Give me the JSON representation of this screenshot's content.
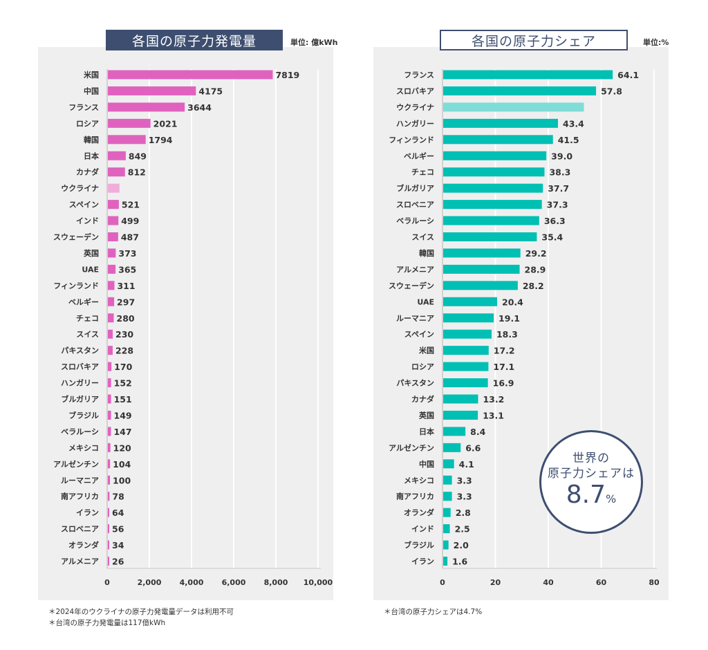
{
  "left": {
    "title": "各国の原子力発電量",
    "unit": "単位: 億kWh",
    "notes": [
      "＊2024年のウクライナの原子力発電量データは利用不可",
      "＊台湾の原子力発電量は117億kWh"
    ]
  },
  "right": {
    "title": "各国の原子力シェア",
    "unit": "単位:%",
    "notes": [
      "＊台湾の原子力シェアは4.7%"
    ],
    "badge": {
      "line1": "世界の",
      "line2": "原子力シェアは",
      "value": "8.7",
      "suffix": "%"
    }
  },
  "colors": {
    "pink": "#e062bf",
    "pink_light": "#f1acdc",
    "teal": "#00bfb3",
    "teal_light": "#7fdcd7",
    "navy": "#3d4e70",
    "panel": "#efefef"
  },
  "chart_data": [
    {
      "type": "bar",
      "orientation": "horizontal",
      "title": "各国の原子力発電量",
      "unit": "億kWh",
      "xlim": [
        0,
        10000
      ],
      "xticks": [
        0,
        2000,
        4000,
        6000,
        8000,
        10000
      ],
      "xtick_labels": [
        "0",
        "2,000",
        "4,000",
        "6,000",
        "8,000",
        "10,000"
      ],
      "grid": true,
      "categories": [
        "米国",
        "中国",
        "フランス",
        "ロシア",
        "韓国",
        "日本",
        "カナダ",
        "ウクライナ",
        "スペイン",
        "インド",
        "スウェーデン",
        "英国",
        "UAE",
        "フィンランド",
        "ベルギー",
        "チェコ",
        "スイス",
        "パキスタン",
        "スロバキア",
        "ハンガリー",
        "ブルガリア",
        "ブラジル",
        "ベラルーシ",
        "メキシコ",
        "アルゼンチン",
        "ルーマニア",
        "南アフリカ",
        "イラン",
        "スロベニア",
        "オランダ",
        "アルメニア"
      ],
      "values": [
        7819,
        4175,
        3644,
        2021,
        1794,
        849,
        812,
        550,
        521,
        499,
        487,
        373,
        365,
        311,
        297,
        280,
        230,
        228,
        170,
        152,
        151,
        149,
        147,
        120,
        104,
        100,
        78,
        64,
        56,
        34,
        26
      ],
      "labels": [
        "7819",
        "4175",
        "3644",
        "2021",
        "1794",
        "849",
        "812",
        null,
        "521",
        "499",
        "487",
        "373",
        "365",
        "311",
        "297",
        "280",
        "230",
        "228",
        "170",
        "152",
        "151",
        "149",
        "147",
        "120",
        "104",
        "100",
        "78",
        "64",
        "56",
        "34",
        "26"
      ],
      "highlight_light": [
        "ウクライナ"
      ]
    },
    {
      "type": "bar",
      "orientation": "horizontal",
      "title": "各国の原子力シェア",
      "unit": "%",
      "xlim": [
        0,
        80
      ],
      "xticks": [
        0,
        20,
        40,
        60,
        80
      ],
      "xtick_labels": [
        "0",
        "20",
        "40",
        "60",
        "80"
      ],
      "grid": true,
      "categories": [
        "フランス",
        "スロバキア",
        "ウクライナ",
        "ハンガリー",
        "フィンランド",
        "ベルギー",
        "チェコ",
        "ブルガリア",
        "スロベニア",
        "ベラルーシ",
        "スイス",
        "韓国",
        "アルメニア",
        "スウェーデン",
        "UAE",
        "ルーマニア",
        "スペイン",
        "米国",
        "ロシア",
        "パキスタン",
        "カナダ",
        "英国",
        "日本",
        "アルゼンチン",
        "中国",
        "メキシコ",
        "南アフリカ",
        "オランダ",
        "インド",
        "ブラジル",
        "イラン"
      ],
      "values": [
        64.1,
        57.8,
        53.2,
        43.4,
        41.5,
        39.0,
        38.3,
        37.7,
        37.3,
        36.3,
        35.4,
        29.2,
        28.9,
        28.2,
        20.4,
        19.1,
        18.3,
        17.2,
        17.1,
        16.9,
        13.2,
        13.1,
        8.4,
        6.6,
        4.1,
        3.3,
        3.3,
        2.8,
        2.5,
        2.0,
        1.6
      ],
      "labels": [
        "64.1",
        "57.8",
        null,
        "43.4",
        "41.5",
        "39.0",
        "38.3",
        "37.7",
        "37.3",
        "36.3",
        "35.4",
        "29.2",
        "28.9",
        "28.2",
        "20.4",
        "19.1",
        "18.3",
        "17.2",
        "17.1",
        "16.9",
        "13.2",
        "13.1",
        "8.4",
        "6.6",
        "4.1",
        "3.3",
        "3.3",
        "2.8",
        "2.5",
        "2.0",
        "1.6"
      ],
      "highlight_light": [
        "ウクライナ"
      ]
    }
  ]
}
